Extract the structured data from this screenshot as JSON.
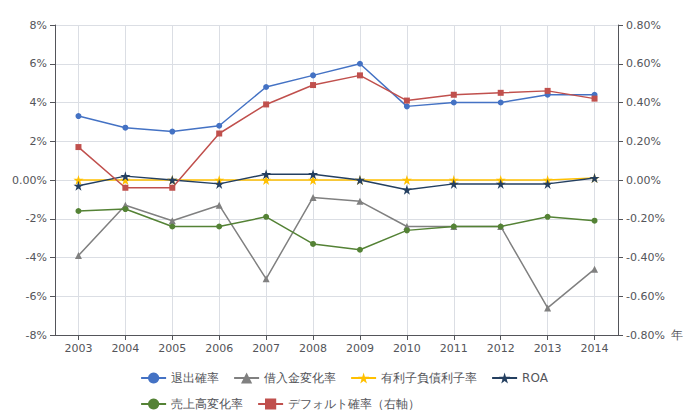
{
  "chart_data": {
    "type": "line",
    "x": [
      2003,
      2004,
      2005,
      2006,
      2007,
      2008,
      2009,
      2010,
      2011,
      2012,
      2013,
      2014
    ],
    "xlabel": "年",
    "xlim": [
      2002.5,
      2014.5
    ],
    "xticks": [
      2003,
      2004,
      2005,
      2006,
      2007,
      2008,
      2009,
      2010,
      2011,
      2012,
      2013,
      2014
    ],
    "ylim": [
      -8.0,
      8.0
    ],
    "yticks": [
      {
        "value": -8.0,
        "label": "-8%"
      },
      {
        "value": -6.0,
        "label": "-6%"
      },
      {
        "value": -4.0,
        "label": "-4%"
      },
      {
        "value": -2.0,
        "label": "-2%"
      },
      {
        "value": 0.0,
        "label": "0.00%"
      },
      {
        "value": 2.0,
        "label": "2%"
      },
      {
        "value": 4.0,
        "label": "4%"
      },
      {
        "value": 6.0,
        "label": "6%"
      },
      {
        "value": 8.0,
        "label": "8%"
      }
    ],
    "y2lim": [
      -0.8,
      0.8
    ],
    "y2ticks": [
      {
        "value": -0.8,
        "label": "-0.80%"
      },
      {
        "value": -0.6,
        "label": "-0.60%"
      },
      {
        "value": -0.4,
        "label": "-0.40%"
      },
      {
        "value": -0.2,
        "label": "-0.20%"
      },
      {
        "value": 0.0,
        "label": "0.00%"
      },
      {
        "value": 0.2,
        "label": "0.20%"
      },
      {
        "value": 0.4,
        "label": "0.40%"
      },
      {
        "value": 0.6,
        "label": "0.60%"
      },
      {
        "value": 0.8,
        "label": "0.80%"
      }
    ],
    "grid": true,
    "legend": "bottom",
    "series": [
      {
        "name": "退出確率",
        "color": "#4472C4",
        "marker": "circle",
        "values": [
          3.3,
          2.7,
          2.5,
          2.8,
          4.8,
          5.4,
          6.0,
          3.8,
          4.0,
          4.0,
          4.4,
          4.4
        ]
      },
      {
        "name": "借入金変化率",
        "color": "#808080",
        "marker": "triangle",
        "values": [
          -3.9,
          -1.3,
          -2.1,
          -1.3,
          -5.1,
          -0.9,
          -1.1,
          -2.4,
          -2.4,
          -2.4,
          -6.6,
          -4.6
        ]
      },
      {
        "name": "有利子負債利子率",
        "color": "#FFC000",
        "marker": "star",
        "values": [
          0.0,
          0.0,
          0.0,
          0.0,
          0.0,
          0.0,
          0.0,
          0.0,
          0.0,
          0.0,
          0.0,
          0.1
        ]
      },
      {
        "name": "ROA",
        "color": "#243F60",
        "marker": "star",
        "values": [
          -0.3,
          0.2,
          0.0,
          -0.2,
          0.3,
          0.3,
          0.0,
          -0.5,
          -0.2,
          -0.2,
          -0.2,
          0.1
        ]
      },
      {
        "name": "売上高変化率",
        "color": "#548235",
        "marker": "circle",
        "values": [
          -1.6,
          -1.5,
          -2.4,
          -2.4,
          -1.9,
          -3.3,
          -3.6,
          -2.6,
          -2.4,
          -2.4,
          -1.9,
          -2.1
        ]
      },
      {
        "name": "デフォルト確率（右軸）",
        "color": "#C0504D",
        "marker": "square",
        "axis": "y2",
        "values": [
          0.17,
          -0.04,
          -0.04,
          0.24,
          0.39,
          0.49,
          0.54,
          0.41,
          0.44,
          0.45,
          0.46,
          0.42
        ]
      }
    ]
  }
}
